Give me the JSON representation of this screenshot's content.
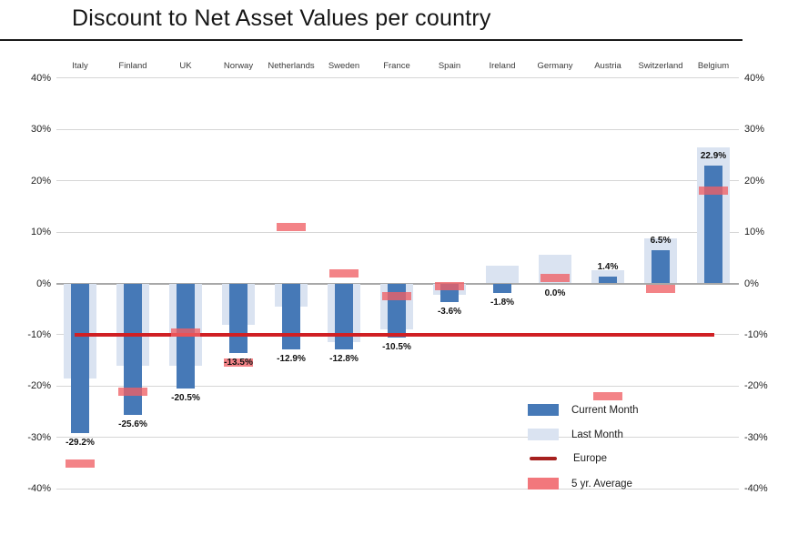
{
  "title": "Discount to Net Asset Values per country",
  "legend": {
    "items": [
      {
        "label": "Current Month",
        "swatch": "bar",
        "color": "#4679b7"
      },
      {
        "label": "Last Month",
        "swatch": "bar",
        "color": "#dae3f1"
      },
      {
        "label": "Europe",
        "swatch": "line",
        "color": "#a6201e"
      },
      {
        "label": "5 yr. Average",
        "swatch": "bar",
        "color": "#f2777c"
      }
    ]
  },
  "chart_data": {
    "type": "bar",
    "title": "Discount to Net Asset Values per country",
    "categories": [
      "Italy",
      "Finland",
      "UK",
      "Norway",
      "Netherlands",
      "Sweden",
      "France",
      "Spain",
      "Ireland",
      "Germany",
      "Austria",
      "Switzerland",
      "Belgium"
    ],
    "series": [
      {
        "name": "Current Month",
        "type": "bar",
        "color": "#4679b7",
        "values": [
          -29.2,
          -25.6,
          -20.5,
          -13.5,
          -12.9,
          -12.8,
          -10.5,
          -3.6,
          -1.8,
          0.0,
          1.4,
          6.5,
          22.9
        ]
      },
      {
        "name": "Last Month",
        "type": "bar",
        "color": "#dae3f1",
        "values": [
          -18.5,
          -16.0,
          -16.0,
          -8.0,
          -4.5,
          -11.5,
          -9.0,
          -2.3,
          3.5,
          5.5,
          2.5,
          8.8,
          26.5
        ]
      },
      {
        "name": "Europe",
        "type": "line",
        "color": "#d02024",
        "value": -10
      },
      {
        "name": "5 yr. Average",
        "type": "marker",
        "color": "#f2777c",
        "values": [
          -35,
          -21,
          -9.5,
          -15.5,
          11,
          2,
          -2.5,
          -0.5,
          null,
          1,
          -22,
          -1,
          18
        ]
      }
    ],
    "data_labels": [
      "-29.2%",
      "-25.6%",
      "-20.5%",
      "-13.5%",
      "-12.9%",
      "-12.8%",
      "-10.5%",
      "-3.6%",
      "-1.8%",
      "0.0%",
      "1.4%",
      "6.5%",
      "22.9%"
    ],
    "y_axis": {
      "min": -40,
      "max": 40,
      "step": 10,
      "ticks": [
        {
          "value": 40,
          "label": "40%"
        },
        {
          "value": 30,
          "label": "30%"
        },
        {
          "value": 20,
          "label": "20%"
        },
        {
          "value": 10,
          "label": "10%"
        },
        {
          "value": 0,
          "label": "0%"
        },
        {
          "value": -10,
          "label": "-10%"
        },
        {
          "value": -20,
          "label": "-20%"
        },
        {
          "value": -30,
          "label": "-30%"
        },
        {
          "value": -40,
          "label": "-40%"
        }
      ],
      "sides": "both"
    },
    "grid": true,
    "legend_position": "bottom-right"
  }
}
